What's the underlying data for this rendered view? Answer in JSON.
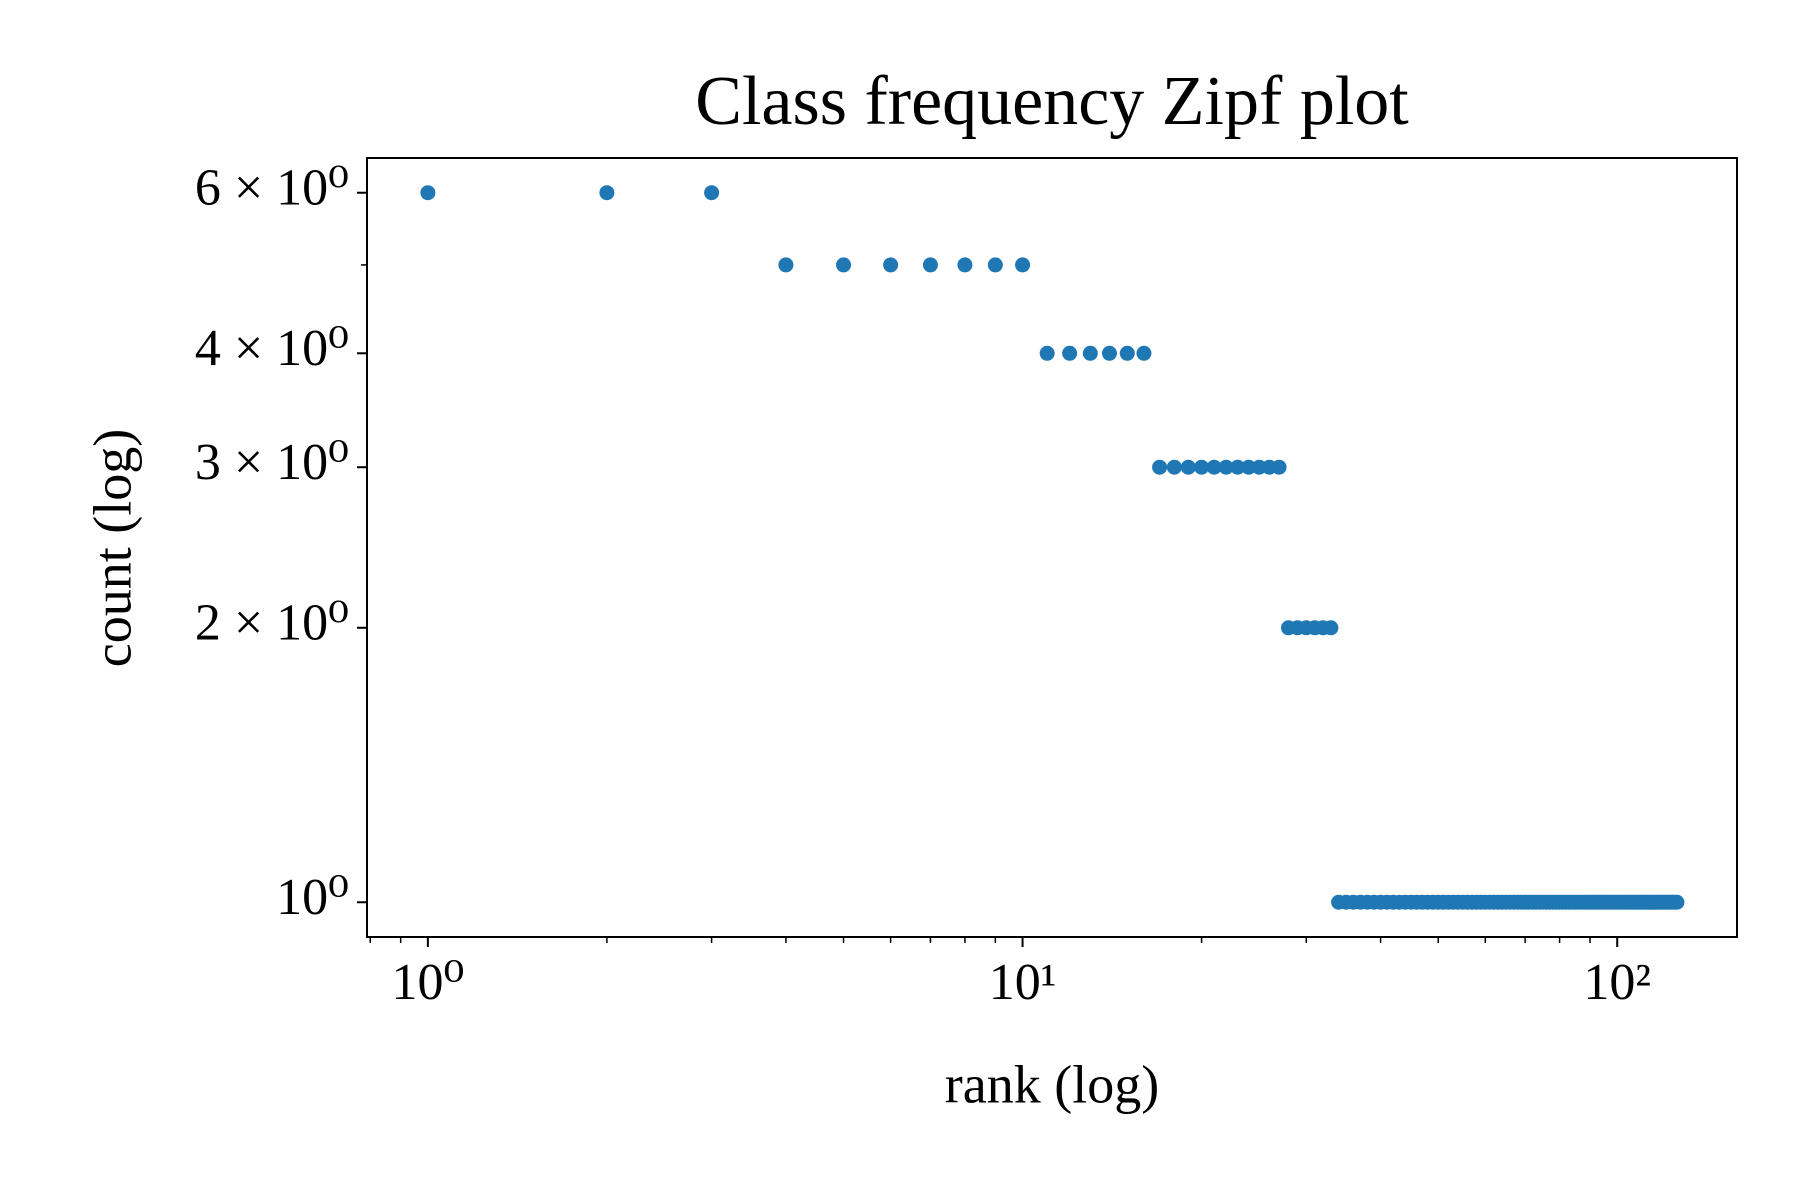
{
  "chart_data": {
    "type": "scatter",
    "title": "Class frequency Zipf plot",
    "x_label": "rank (log)",
    "y_label": "count (log)",
    "color": "#1f77b4",
    "xscale": "log",
    "yscale": "log",
    "x": [
      1,
      2,
      3,
      4,
      5,
      6,
      7,
      8,
      9,
      10,
      11,
      12,
      13,
      14,
      15,
      16,
      17,
      18,
      19,
      20,
      21,
      22,
      23,
      24,
      25,
      26,
      27,
      28,
      29,
      30,
      31,
      32,
      33,
      34,
      35,
      36,
      37,
      38,
      39,
      40,
      41,
      42,
      43,
      44,
      45,
      46,
      47,
      48,
      49,
      50,
      51,
      52,
      53,
      54,
      55,
      56,
      57,
      58,
      59,
      60,
      61,
      62,
      63,
      64,
      65,
      66,
      67,
      68,
      69,
      70,
      71,
      72,
      73,
      74,
      75,
      76,
      77,
      78,
      79,
      80,
      81,
      82,
      83,
      84,
      85,
      86,
      87,
      88,
      89,
      90,
      91,
      92,
      93,
      94,
      95,
      96,
      97,
      98,
      99,
      100,
      101,
      102,
      103,
      104,
      105,
      106,
      107,
      108,
      109,
      110,
      111,
      112,
      113,
      114,
      115,
      116,
      117,
      118,
      119,
      120,
      121,
      122,
      123,
      124,
      125,
      126
    ],
    "values": [
      6,
      6,
      6,
      5,
      5,
      5,
      5,
      5,
      5,
      5,
      4,
      4,
      4,
      4,
      4,
      4,
      3,
      3,
      3,
      3,
      3,
      3,
      3,
      3,
      3,
      3,
      3,
      2,
      2,
      2,
      2,
      2,
      2,
      1,
      1,
      1,
      1,
      1,
      1,
      1,
      1,
      1,
      1,
      1,
      1,
      1,
      1,
      1,
      1,
      1,
      1,
      1,
      1,
      1,
      1,
      1,
      1,
      1,
      1,
      1,
      1,
      1,
      1,
      1,
      1,
      1,
      1,
      1,
      1,
      1,
      1,
      1,
      1,
      1,
      1,
      1,
      1,
      1,
      1,
      1,
      1,
      1,
      1,
      1,
      1,
      1,
      1,
      1,
      1,
      1,
      1,
      1,
      1,
      1,
      1,
      1,
      1,
      1,
      1,
      1,
      1,
      1,
      1,
      1,
      1,
      1,
      1,
      1,
      1,
      1,
      1,
      1,
      1,
      1,
      1,
      1,
      1,
      1,
      1,
      1,
      1,
      1,
      1,
      1,
      1,
      1
    ],
    "xlim": [
      0.79,
      159
    ],
    "ylim": [
      0.916,
      6.55
    ],
    "xticks": [
      {
        "value": 1,
        "label": "10⁰"
      },
      {
        "value": 10,
        "label": "10¹"
      },
      {
        "value": 100,
        "label": "10²"
      }
    ],
    "xminorticks": [
      0.8,
      0.9,
      2,
      3,
      4,
      5,
      6,
      7,
      8,
      9,
      20,
      30,
      40,
      50,
      60,
      70,
      80,
      90
    ],
    "yticks": [
      {
        "value": 1,
        "label": "10⁰"
      },
      {
        "value": 2,
        "label": "2 × 10⁰"
      },
      {
        "value": 3,
        "label": "3 × 10⁰"
      },
      {
        "value": 4,
        "label": "4 × 10⁰"
      },
      {
        "value": 6,
        "label": "6 × 10⁰"
      }
    ],
    "yminorticks": [
      5
    ]
  }
}
